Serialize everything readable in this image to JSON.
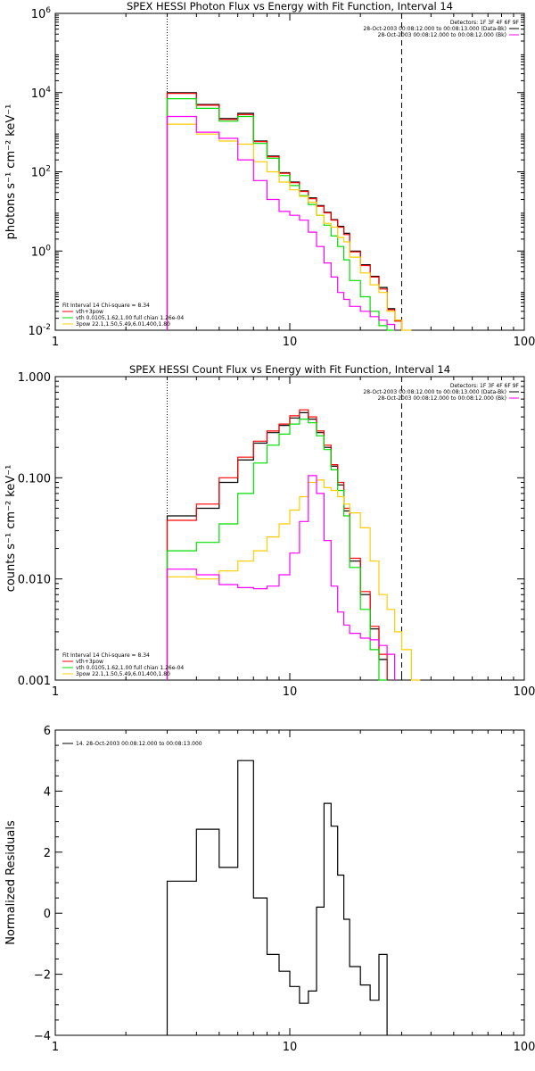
{
  "chart_data": [
    {
      "type": "line",
      "title": "SPEX HESSI Photon Flux vs Energy with Fit Function, Interval 14",
      "ylabel": "photons s⁻¹ cm⁻² keV⁻¹",
      "xlabel": "",
      "xscale": "log",
      "yscale": "log",
      "xlim": [
        1,
        100
      ],
      "ylim": [
        0.01,
        1000000
      ],
      "xticks": [
        {
          "v": 1,
          "t": "1"
        },
        {
          "v": 10,
          "t": "10"
        },
        {
          "v": 100,
          "t": "100"
        }
      ],
      "yticks": [
        {
          "v": 0.01,
          "b": "10",
          "e": "-2"
        },
        {
          "v": 1,
          "b": "10",
          "e": "0"
        },
        {
          "v": 100,
          "b": "10",
          "e": "2"
        },
        {
          "v": 10000,
          "b": "10",
          "e": "4"
        },
        {
          "v": 1000000,
          "b": "10",
          "e": "6"
        }
      ],
      "vlines": [
        {
          "x": 3,
          "style": "dotted"
        },
        {
          "x": 30,
          "style": "dashed"
        }
      ],
      "legend_top": {
        "line1": "Detectors: 1F 3F 4F 6F 9F",
        "entries": [
          {
            "label": "28-Oct-2003 00:08:12.000 to 00:08:13.000 (Data-Bk)",
            "color": "#000000"
          },
          {
            "label": "28-Oct-2003 00:08:12.000 to 00:08:12.000 (Bk)",
            "color": "#ff00ff"
          }
        ]
      },
      "legend_bottom": {
        "line1": "Fit Interval 14   Chi-square = 8.34",
        "entries": [
          {
            "label": "vth+3pow",
            "color": "#ff0000"
          },
          {
            "label": "vth 0.0105,1.62,1.00  full chian 1.26e-04",
            "color": "#00dd00"
          },
          {
            "label": "3pow 22.1,1.50,5.49,6.01,400,1.80",
            "color": "#ffcc00"
          }
        ]
      },
      "edges": [
        3.0,
        4.0,
        5.0,
        6.0,
        7.0,
        8.0,
        9.0,
        10.0,
        11.0,
        12.0,
        13.0,
        14.0,
        15.0,
        16.0,
        17.0,
        18.0,
        20.0,
        22.0,
        24.0,
        26.0,
        28.0,
        30.0,
        33.0
      ],
      "series": [
        {
          "color": "#000000",
          "values": [
            10000,
            5000,
            2200,
            3000,
            600,
            250,
            95,
            55,
            33,
            22,
            14,
            9.5,
            6.2,
            4.2,
            2.8,
            1.0,
            0.45,
            0.23,
            0.12,
            0.035,
            0.018
          ]
        },
        {
          "color": "#ff0000",
          "values": [
            9500,
            4800,
            2100,
            2800,
            580,
            240,
            92,
            53,
            32,
            21,
            13.5,
            9.2,
            6.0,
            4.0,
            2.6,
            0.95,
            0.43,
            0.22,
            0.11,
            0.033,
            0.017
          ]
        },
        {
          "color": "#00dd00",
          "values": [
            7000,
            4000,
            1900,
            2500,
            520,
            220,
            80,
            45,
            25,
            15,
            8,
            4.5,
            2.4,
            1.3,
            0.6,
            0.18,
            0.07,
            0.03,
            0.013,
            0.006
          ]
        },
        {
          "color": "#ffcc00",
          "values": [
            1600,
            900,
            600,
            500,
            180,
            100,
            55,
            35,
            24,
            17,
            8,
            5,
            4,
            2.2,
            1.7,
            0.7,
            0.28,
            0.14,
            0.09,
            0.03,
            0.018,
            0.01
          ]
        },
        {
          "color": "#ff00ff",
          "values": [
            2500,
            1000,
            700,
            200,
            60,
            20,
            10,
            8,
            6,
            3,
            1.3,
            0.5,
            0.22,
            0.09,
            0.06,
            0.04,
            0.03,
            0.022,
            0.018,
            0.014
          ]
        }
      ]
    },
    {
      "type": "line",
      "title": "SPEX HESSI Count Flux vs Energy with Fit Function, Interval 14",
      "ylabel": "counts s⁻¹ cm⁻² keV⁻¹",
      "xlabel": "",
      "xscale": "log",
      "yscale": "log",
      "xlim": [
        1,
        100
      ],
      "ylim": [
        0.001,
        1
      ],
      "xticks": [
        {
          "v": 1,
          "t": "1"
        },
        {
          "v": 10,
          "t": "10"
        },
        {
          "v": 100,
          "t": "100"
        }
      ],
      "yticks": [
        {
          "v": 0.001,
          "t": "0.001"
        },
        {
          "v": 0.01,
          "t": "0.010"
        },
        {
          "v": 0.1,
          "t": "0.100"
        },
        {
          "v": 1,
          "t": "1.000"
        }
      ],
      "vlines": [
        {
          "x": 3,
          "style": "dotted"
        },
        {
          "x": 30,
          "style": "dashed"
        }
      ],
      "legend_top": {
        "line1": "Detectors: 1F 3F 4F 6F 9F",
        "entries": [
          {
            "label": "28-Oct-2003 00:08:12.000 to 00:08:13.000 (Data-Bk)",
            "color": "#000000"
          },
          {
            "label": "28-Oct-2003 00:08:12.000 to 00:08:12.000 (Bk)",
            "color": "#ff00ff"
          }
        ]
      },
      "legend_bottom": {
        "line1": "Fit Interval 14   Chi-square = 8.34",
        "entries": [
          {
            "label": "vth+3pow",
            "color": "#ff0000"
          },
          {
            "label": "vth 0.0105,1.62,1.00  full chian 1.26e-04",
            "color": "#00dd00"
          },
          {
            "label": "3pow 22.1,1.50,5.49,6.01,400,1.80",
            "color": "#ffcc00"
          }
        ]
      },
      "edges": [
        3.0,
        4.0,
        5.0,
        6.0,
        7.0,
        8.0,
        9.0,
        10.0,
        11.0,
        12.0,
        13.0,
        14.0,
        15.0,
        16.0,
        17.0,
        18.0,
        20.0,
        22.0,
        24.0,
        26.0,
        28.0,
        30.0,
        33.0,
        36.0
      ],
      "series": [
        {
          "color": "#000000",
          "values": [
            0.042,
            0.05,
            0.09,
            0.15,
            0.22,
            0.28,
            0.33,
            0.39,
            0.44,
            0.38,
            0.28,
            0.2,
            0.13,
            0.085,
            0.047,
            0.015,
            0.007,
            0.0032,
            0.0016
          ]
        },
        {
          "color": "#ff0000",
          "values": [
            0.038,
            0.055,
            0.1,
            0.16,
            0.23,
            0.29,
            0.34,
            0.41,
            0.47,
            0.4,
            0.29,
            0.21,
            0.135,
            0.09,
            0.05,
            0.016,
            0.0075,
            0.0034,
            0.0018
          ]
        },
        {
          "color": "#00dd00",
          "values": [
            0.019,
            0.023,
            0.035,
            0.07,
            0.14,
            0.21,
            0.27,
            0.34,
            0.38,
            0.35,
            0.26,
            0.19,
            0.12,
            0.075,
            0.042,
            0.013,
            0.005,
            0.002,
            0.001
          ]
        },
        {
          "color": "#ffcc00",
          "values": [
            0.0105,
            0.01,
            0.012,
            0.015,
            0.019,
            0.026,
            0.035,
            0.048,
            0.065,
            0.09,
            0.095,
            0.08,
            0.075,
            0.065,
            0.055,
            0.045,
            0.032,
            0.015,
            0.007,
            0.005,
            0.003,
            0.002,
            0.001
          ]
        },
        {
          "color": "#ff00ff",
          "values": [
            0.0125,
            0.011,
            0.0088,
            0.0082,
            0.008,
            0.0085,
            0.011,
            0.018,
            0.037,
            0.105,
            0.07,
            0.024,
            0.0085,
            0.0047,
            0.0035,
            0.0029,
            0.0026,
            0.0025,
            0.0022,
            0.0018
          ]
        }
      ]
    },
    {
      "type": "line",
      "title": "",
      "ylabel": "Normalized Residuals",
      "xlabel": "",
      "xscale": "log",
      "yscale": "linear",
      "xlim": [
        1,
        100
      ],
      "ylim": [
        -4,
        6
      ],
      "xticks": [
        {
          "v": 1,
          "t": "1"
        },
        {
          "v": 10,
          "t": "10"
        },
        {
          "v": 100,
          "t": "100"
        }
      ],
      "yticks": [
        {
          "v": -4,
          "t": "−4"
        },
        {
          "v": -2,
          "t": "−2"
        },
        {
          "v": 0,
          "t": "0"
        },
        {
          "v": 2,
          "t": "2"
        },
        {
          "v": 4,
          "t": "4"
        },
        {
          "v": 6,
          "t": "6"
        }
      ],
      "legend_top": {
        "line1": "",
        "entries": [
          {
            "label": "14. 28-Oct-2003 00:08:12.000 to 00:08:13.000",
            "color": "#000000"
          }
        ]
      },
      "edges": [
        3.0,
        4.0,
        5.0,
        6.0,
        7.0,
        8.0,
        9.0,
        10.0,
        11.0,
        12.0,
        13.0,
        14.0,
        15.0,
        16.0,
        17.0,
        18.0,
        20.0,
        22.0,
        24.0,
        26.0,
        28.0,
        30.0
      ],
      "series": [
        {
          "color": "#000000",
          "values": [
            1.05,
            2.75,
            1.5,
            5.0,
            0.5,
            -1.35,
            -1.9,
            -2.4,
            -2.95,
            -2.55,
            0.2,
            3.6,
            2.85,
            1.25,
            -0.2,
            -1.75,
            -2.35,
            -2.85,
            -1.35
          ]
        }
      ]
    }
  ]
}
